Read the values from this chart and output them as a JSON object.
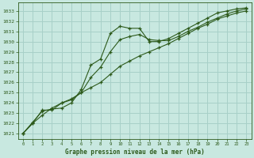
{
  "background_color": "#c8e8e0",
  "grid_color": "#a8d0c8",
  "line_color": "#2d5a1b",
  "title": "Graphe pression niveau de la mer (hPa)",
  "xlim": [
    -0.5,
    23.5
  ],
  "ylim": [
    1020.5,
    1033.8
  ],
  "yticks": [
    1021,
    1022,
    1023,
    1024,
    1025,
    1026,
    1027,
    1028,
    1029,
    1030,
    1031,
    1032,
    1033
  ],
  "xticks": [
    0,
    1,
    2,
    3,
    4,
    5,
    6,
    7,
    8,
    9,
    10,
    11,
    12,
    13,
    14,
    15,
    16,
    17,
    18,
    19,
    20,
    21,
    22,
    23
  ],
  "series1_x": [
    0,
    1,
    2,
    3,
    4,
    5,
    6,
    7,
    8,
    9,
    10,
    11,
    12,
    13,
    14,
    15,
    16,
    17,
    18,
    19,
    20,
    21,
    22,
    23
  ],
  "series1_y": [
    1021.0,
    1022.1,
    1023.2,
    1023.4,
    1023.5,
    1024.0,
    1025.3,
    1027.7,
    1028.3,
    1030.8,
    1031.5,
    1031.3,
    1031.3,
    1030.0,
    1030.0,
    1030.3,
    1030.8,
    1031.3,
    1031.8,
    1032.3,
    1032.8,
    1033.0,
    1033.2,
    1033.3
  ],
  "series2_x": [
    0,
    1,
    2,
    3,
    4,
    5,
    6,
    7,
    8,
    9,
    10,
    11,
    12,
    13,
    14,
    15,
    16,
    17,
    18,
    19,
    20,
    21,
    22,
    23
  ],
  "series2_y": [
    1021.0,
    1022.0,
    1023.3,
    1023.3,
    1024.0,
    1024.3,
    1025.0,
    1026.5,
    1027.5,
    1029.0,
    1030.2,
    1030.5,
    1030.7,
    1030.2,
    1030.1,
    1030.1,
    1030.5,
    1031.0,
    1031.4,
    1031.9,
    1032.3,
    1032.7,
    1033.0,
    1033.2
  ],
  "series3_x": [
    0,
    1,
    2,
    3,
    4,
    5,
    6,
    7,
    8,
    9,
    10,
    11,
    12,
    13,
    14,
    15,
    16,
    17,
    18,
    19,
    20,
    21,
    22,
    23
  ],
  "series3_y": [
    1021.0,
    1022.0,
    1022.8,
    1023.5,
    1024.0,
    1024.4,
    1025.0,
    1025.5,
    1026.0,
    1026.8,
    1027.6,
    1028.1,
    1028.6,
    1029.0,
    1029.4,
    1029.8,
    1030.3,
    1030.8,
    1031.3,
    1031.7,
    1032.2,
    1032.5,
    1032.8,
    1033.0
  ]
}
